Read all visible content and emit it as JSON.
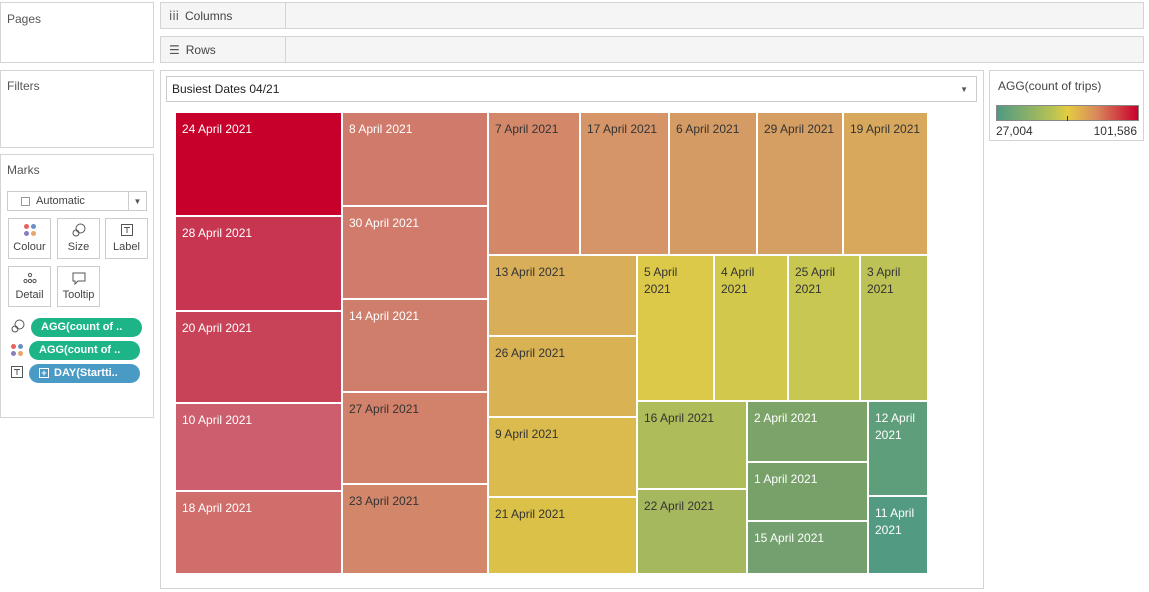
{
  "panes": {
    "pages": "Pages",
    "filters": "Filters",
    "marks": "Marks"
  },
  "shelves": {
    "columns": "Columns",
    "rows": "Rows"
  },
  "marks": {
    "mark_type": "Automatic",
    "buttons": {
      "colour": "Colour",
      "size": "Size",
      "label": "Label",
      "detail": "Detail",
      "tooltip": "Tooltip"
    },
    "pills": {
      "size_field": "AGG(count of ..",
      "colour_field": "AGG(count of ..",
      "label_field": "DAY(Startti.."
    }
  },
  "sheet_title": "Busiest Dates 04/21",
  "legend": {
    "title": "AGG(count of trips)",
    "min": "27,004",
    "max": "101,586",
    "color_low": "#4f9a83",
    "color_mid": "#e4cc41",
    "color_high": "#c8002b"
  },
  "chart_data": {
    "type": "treemap",
    "measure": "AGG(count of trips)",
    "color_range": [
      27004,
      101586
    ],
    "tiles": [
      {
        "label": "24 April 2021",
        "color": "#c6002a",
        "text": "#ffffff"
      },
      {
        "label": "28 April 2021",
        "color": "#c83550",
        "text": "#ffffff"
      },
      {
        "label": "20 April 2021",
        "color": "#c94358",
        "text": "#ffffff"
      },
      {
        "label": "10 April 2021",
        "color": "#cc5e6d",
        "text": "#ffffff"
      },
      {
        "label": "18 April 2021",
        "color": "#d06e6c",
        "text": "#ffffff"
      },
      {
        "label": "8 April 2021",
        "color": "#d07a6b",
        "text": "#ffffff"
      },
      {
        "label": "30 April 2021",
        "color": "#d07b6c",
        "text": "#ffffff"
      },
      {
        "label": "14 April 2021",
        "color": "#d07e6c",
        "text": "#ffffff"
      },
      {
        "label": "27 April 2021",
        "color": "#d2826b",
        "text": "#333333"
      },
      {
        "label": "23 April 2021",
        "color": "#d2876a",
        "text": "#333333"
      },
      {
        "label": "7 April 2021",
        "color": "#d4886a",
        "text": "#333333"
      },
      {
        "label": "17 April 2021",
        "color": "#d59568",
        "text": "#333333"
      },
      {
        "label": "6 April 2021",
        "color": "#d59b64",
        "text": "#333333"
      },
      {
        "label": "29 April 2021",
        "color": "#d59e62",
        "text": "#333333"
      },
      {
        "label": "19 April 2021",
        "color": "#d8a95c",
        "text": "#333333"
      },
      {
        "label": "13 April 2021",
        "color": "#d9ae58",
        "text": "#333333"
      },
      {
        "label": "26 April 2021",
        "color": "#d9b254",
        "text": "#333333"
      },
      {
        "label": "9 April 2021",
        "color": "#dbba4e",
        "text": "#333333"
      },
      {
        "label": "21 April 2021",
        "color": "#dcc148",
        "text": "#333333"
      },
      {
        "label": "5 April 2021",
        "color": "#dcc94a",
        "text": "#333333"
      },
      {
        "label": "4 April 2021",
        "color": "#d2c94c",
        "text": "#333333"
      },
      {
        "label": "25 April 2021",
        "color": "#c8c751",
        "text": "#333333"
      },
      {
        "label": "3 April 2021",
        "color": "#bcc256",
        "text": "#333333"
      },
      {
        "label": "16 April 2021",
        "color": "#afbc5a",
        "text": "#333333"
      },
      {
        "label": "22 April 2021",
        "color": "#a6b85e",
        "text": "#333333"
      },
      {
        "label": "2 April 2021",
        "color": "#7da468",
        "text": "#ffffff"
      },
      {
        "label": "1 April 2021",
        "color": "#78a16a",
        "text": "#ffffff"
      },
      {
        "label": "15 April 2021",
        "color": "#73a06e",
        "text": "#ffffff"
      },
      {
        "label": "12 April 2021",
        "color": "#5e9e7a",
        "text": "#ffffff"
      },
      {
        "label": "11 April 2021",
        "color": "#529b82",
        "text": "#ffffff"
      }
    ]
  }
}
